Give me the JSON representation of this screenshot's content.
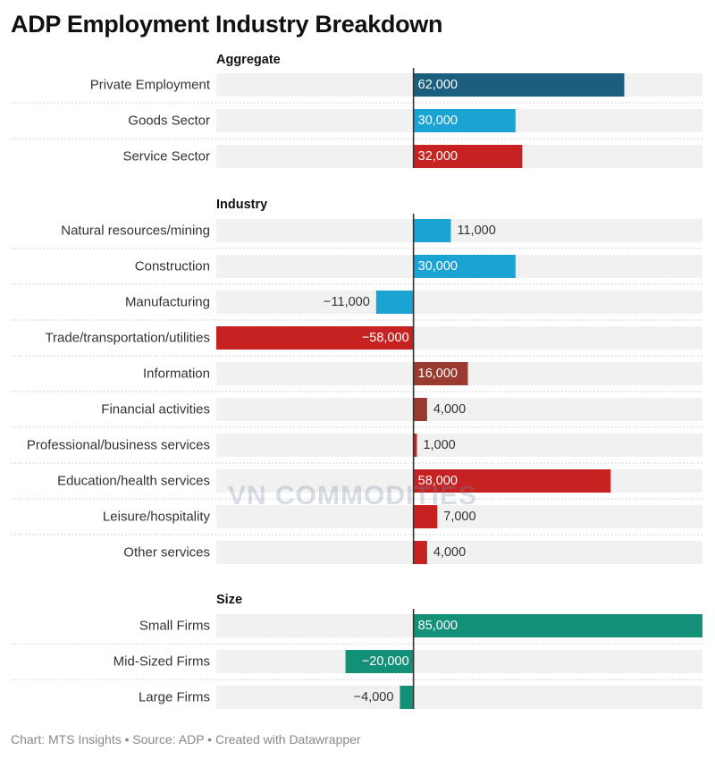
{
  "header": {
    "title": "ADP Employment Industry Breakdown"
  },
  "footer": {
    "text": "Chart: MTS Insights • Source: ADP • Created with Datawrapper"
  },
  "watermark": {
    "text": "VN COMMODITIES"
  },
  "colors": {
    "dark_blue": "#1b5e7d",
    "light_blue": "#1ba3d3",
    "red": "#c62222",
    "brown": "#9a3b2f",
    "green": "#139078",
    "row_bg": "#f1f1f1",
    "axis": "#333333"
  },
  "chart_data": {
    "type": "bar",
    "orientation": "horizontal",
    "title": "ADP Employment Industry Breakdown",
    "xlim": [
      -58000,
      85000
    ],
    "groups": [
      {
        "name": "Aggregate",
        "rows": [
          {
            "label": "Private Employment",
            "value": 62000,
            "display": "62,000",
            "color": "#1b5e7d"
          },
          {
            "label": "Goods Sector",
            "value": 30000,
            "display": "30,000",
            "color": "#1ba3d3"
          },
          {
            "label": "Service Sector",
            "value": 32000,
            "display": "32,000",
            "color": "#c62222"
          }
        ]
      },
      {
        "name": "Industry",
        "rows": [
          {
            "label": "Natural resources/mining",
            "value": 11000,
            "display": "11,000",
            "color": "#1ba3d3"
          },
          {
            "label": "Construction",
            "value": 30000,
            "display": "30,000",
            "color": "#1ba3d3"
          },
          {
            "label": "Manufacturing",
            "value": -11000,
            "display": "−11,000",
            "color": "#1ba3d3"
          },
          {
            "label": "Trade/transportation/utilities",
            "value": -58000,
            "display": "−58,000",
            "color": "#c62222"
          },
          {
            "label": "Information",
            "value": 16000,
            "display": "16,000",
            "color": "#9a3b2f"
          },
          {
            "label": "Financial activities",
            "value": 4000,
            "display": "4,000",
            "color": "#9a3b2f"
          },
          {
            "label": "Professional/business services",
            "value": 1000,
            "display": "1,000",
            "color": "#c62222"
          },
          {
            "label": "Education/health services",
            "value": 58000,
            "display": "58,000",
            "color": "#c62222"
          },
          {
            "label": "Leisure/hospitality",
            "value": 7000,
            "display": "7,000",
            "color": "#c62222"
          },
          {
            "label": "Other services",
            "value": 4000,
            "display": "4,000",
            "color": "#c62222"
          }
        ]
      },
      {
        "name": "Size",
        "rows": [
          {
            "label": "Small Firms",
            "value": 85000,
            "display": "85,000",
            "color": "#139078"
          },
          {
            "label": "Mid-Sized Firms",
            "value": -20000,
            "display": "−20,000",
            "color": "#139078"
          },
          {
            "label": "Large Firms",
            "value": -4000,
            "display": "−4,000",
            "color": "#139078"
          }
        ]
      }
    ]
  }
}
